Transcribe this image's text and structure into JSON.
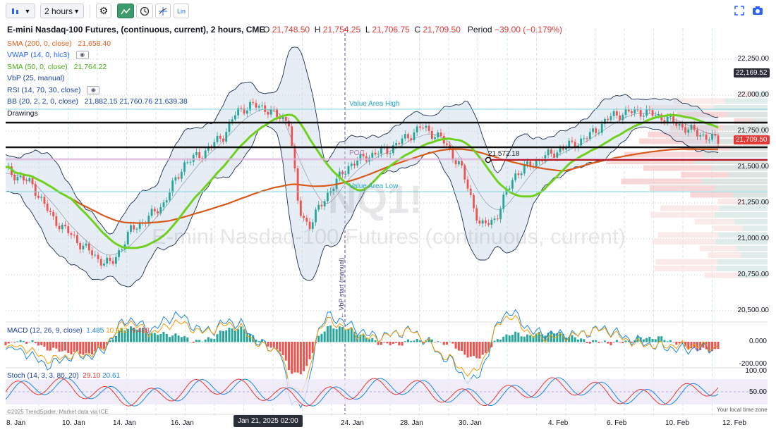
{
  "toolbar": {
    "interval": "2 hours",
    "lin_label": "Lin"
  },
  "header": {
    "title": "E-mini Nasdaq-100 Futures, (continuous, current), 2 hours, CME",
    "o_label": "O",
    "o_value": "21,748.50",
    "h_label": "H",
    "h_value": "21,754.25",
    "l_label": "L",
    "l_value": "21,706.75",
    "c_label": "C",
    "c_value": "21,709.50",
    "period_label": "Period",
    "period_value": "−39.00 (−0.179%)"
  },
  "indicators": [
    {
      "label": "SMA (200, 0, close)",
      "value": "21,658.40",
      "color": "#e0601c"
    },
    {
      "label": "VWAP (14, 0, hlc3)",
      "value": "",
      "color": "#2962ff"
    },
    {
      "label": "SMA (50, 0, close)",
      "value": "21,764.22",
      "color": "#6fcf1f"
    },
    {
      "label": "VbP (25, manual)",
      "value": "",
      "color": "#1c3fa0"
    },
    {
      "label": "RSI (14, 70, 30, close)",
      "value": "",
      "color": "#1c3fa0"
    },
    {
      "label": "BB (20, 2, 2, 0, close)",
      "value": "21,882.15  21,760.76  21,639.38",
      "color": "#1c3fa0"
    }
  ],
  "drawings_label": "Drawings",
  "price_axis": [
    "22,250.00",
    "22,000.00",
    "21,750.00",
    "21,500.00",
    "21,250.00",
    "21,000.00",
    "20,750.00",
    "20,500.00"
  ],
  "price_tags": {
    "high": "22,169.52",
    "last": "21,709.50"
  },
  "annotations": {
    "value_area_high": "Value Area High",
    "value_area_low": "Value Area Low",
    "poc": "POC",
    "level": "21,572.18",
    "vbp_start": "← VbP start (manual)"
  },
  "watermark": {
    "symbol": "NQ1!",
    "name": "E-mini Nasdaq-100 Futures (continuous, current)"
  },
  "macd": {
    "label": "MACD (12, 26, 9, close)",
    "v1": "1.485",
    "v2": "10.982",
    "v3": "-9.498",
    "axis": [
      "0.000",
      "-200.000"
    ]
  },
  "stoch": {
    "label": "Stoch (14, 3, 3, 80, 20)",
    "v1": "29.10",
    "v2": "20.61",
    "axis": [
      "100.00",
      "50.00"
    ]
  },
  "x_axis": [
    "8. Jan",
    "10. Jan",
    "14. Jan",
    "16. Jan",
    "24. Jan",
    "28. Jan",
    "30. Jan",
    "4. Feb",
    "6. Feb",
    "10. Feb",
    "12. Feb"
  ],
  "crosshair_date": "Jan 21, 2025 02:00",
  "footer": {
    "copyright": "©2025 TrendSpider. Market data via ICE",
    "local_time": "Your local time zone"
  }
}
